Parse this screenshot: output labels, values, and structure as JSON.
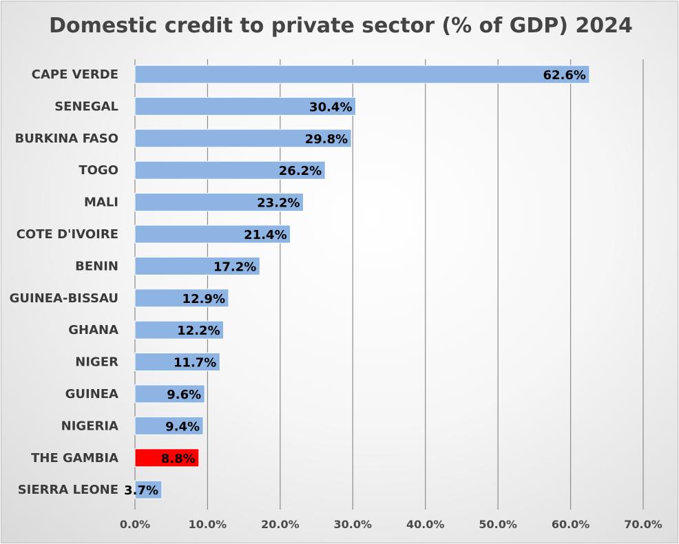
{
  "chart_data": {
    "type": "bar",
    "orientation": "horizontal",
    "title": "Domestic credit to private sector (% of GDP) 2024",
    "xlabel": "",
    "ylabel": "",
    "categories": [
      "CAPE VERDE",
      "SENEGAL",
      "BURKINA FASO",
      "TOGO",
      "MALI",
      "COTE D'IVOIRE",
      "BENIN",
      "GUINEA-BISSAU",
      "GHANA",
      "NIGER",
      "GUINEA",
      "NIGERIA",
      "THE GAMBIA",
      "SIERRA LEONE"
    ],
    "values": [
      62.6,
      30.4,
      29.8,
      26.2,
      23.2,
      21.4,
      17.2,
      12.9,
      12.2,
      11.7,
      9.6,
      9.4,
      8.8,
      3.7
    ],
    "value_labels": [
      "62.6%",
      "30.4%",
      "29.8%",
      "26.2%",
      "23.2%",
      "21.4%",
      "17.2%",
      "12.9%",
      "12.2%",
      "11.7%",
      "9.6%",
      "9.4%",
      "8.8%",
      "3.7%"
    ],
    "highlight": "THE GAMBIA",
    "xlim": [
      0,
      70
    ],
    "xticks": [
      0,
      10,
      20,
      30,
      40,
      50,
      60,
      70
    ],
    "xtick_labels": [
      "0.0%",
      "10.0%",
      "20.0%",
      "30.0%",
      "40.0%",
      "50.0%",
      "60.0%",
      "70.0%"
    ],
    "grid": true,
    "legend": "none",
    "colors": {
      "bar": "#8eb4e3",
      "highlight": "#ff0000",
      "bar_edge": "#ffffff",
      "grid": "#8c8c8c"
    }
  }
}
